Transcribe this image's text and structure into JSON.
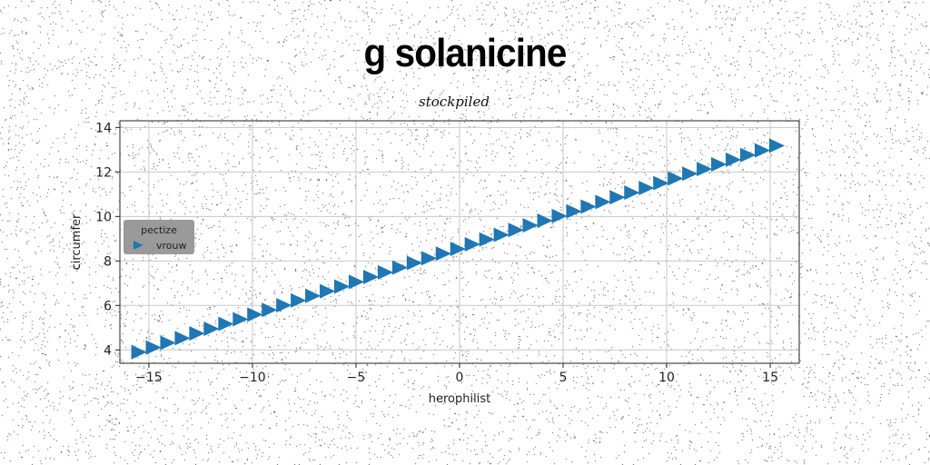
{
  "title": "g solanicine",
  "subtitle": "stockpiled",
  "chart_data": {
    "type": "scatter",
    "xlabel": "herophilist",
    "ylabel": "circumfer",
    "xlim": [
      -16.4,
      16.4
    ],
    "ylim": [
      3.4,
      14.3
    ],
    "xticks": [
      -15,
      -10,
      -5,
      0,
      5,
      10,
      15
    ],
    "xtick_labels": [
      "−15",
      "−10",
      "−5",
      "0",
      "5",
      "10",
      "15"
    ],
    "yticks": [
      4,
      6,
      8,
      10,
      12,
      14
    ],
    "ytick_labels": [
      "4",
      "6",
      "8",
      "10",
      "12",
      "14"
    ],
    "grid": true,
    "marker": "triangle-right",
    "legend": {
      "title": "pectize",
      "placement": "center-left",
      "entries": [
        "vrouw"
      ]
    },
    "series": [
      {
        "name": "vrouw",
        "color": "#1f77b4",
        "x": [
          -15.5,
          -14.8,
          -14.1,
          -13.4,
          -12.7,
          -12.0,
          -11.3,
          -10.6,
          -9.9,
          -9.2,
          -8.5,
          -7.8,
          -7.1,
          -6.4,
          -5.7,
          -5.0,
          -4.3,
          -3.6,
          -2.9,
          -2.2,
          -1.5,
          -0.8,
          -0.1,
          0.6,
          1.3,
          2.0,
          2.7,
          3.4,
          4.1,
          4.8,
          5.5,
          6.2,
          6.9,
          7.6,
          8.3,
          9.0,
          9.7,
          10.4,
          11.1,
          11.8,
          12.5,
          13.2,
          13.9,
          14.6,
          15.3
        ],
        "y": [
          3.9,
          4.11,
          4.32,
          4.53,
          4.74,
          4.95,
          5.17,
          5.38,
          5.59,
          5.8,
          6.01,
          6.22,
          6.43,
          6.64,
          6.85,
          7.06,
          7.28,
          7.49,
          7.7,
          7.91,
          8.12,
          8.33,
          8.54,
          8.75,
          8.96,
          9.17,
          9.39,
          9.6,
          9.81,
          10.02,
          10.23,
          10.44,
          10.65,
          10.86,
          11.07,
          11.28,
          11.5,
          11.71,
          11.92,
          12.13,
          12.34,
          12.55,
          12.76,
          12.97,
          13.18
        ]
      }
    ]
  }
}
